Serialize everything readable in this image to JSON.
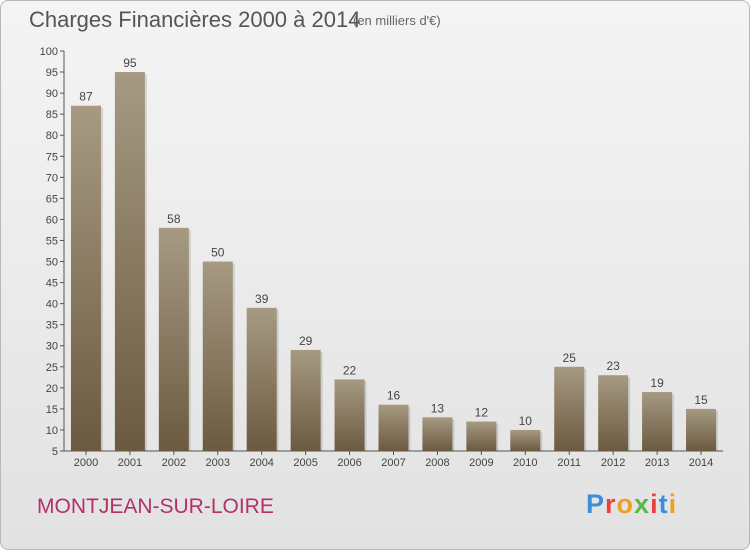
{
  "header": {
    "title": "Charges Financières 2000 à 2014",
    "subtitle": "(en milliers d'€)"
  },
  "footer": {
    "place": "MONTJEAN-SUR-LOIRE",
    "logo_letters": [
      "P",
      "r",
      "o",
      "x",
      "i",
      "t",
      "i"
    ]
  },
  "colors": {
    "bar_light": "#a69a82",
    "bar_dark": "#6b5a40",
    "place": "#b5306b",
    "logo": [
      "#3d8ed8",
      "#e8423c",
      "#f0a020",
      "#58b848",
      "#e8423c",
      "#3d8ed8",
      "#f0a020"
    ]
  },
  "chart_data": {
    "type": "bar",
    "categories": [
      "2000",
      "2001",
      "2002",
      "2003",
      "2004",
      "2005",
      "2006",
      "2007",
      "2008",
      "2009",
      "2010",
      "2011",
      "2012",
      "2013",
      "2014"
    ],
    "values": [
      87,
      95,
      58,
      50,
      39,
      29,
      22,
      16,
      13,
      12,
      10,
      25,
      23,
      19,
      15
    ],
    "title": "Charges Financières 2000 à 2014",
    "subtitle": "(en milliers d'€)",
    "ylim": [
      5,
      100
    ],
    "yticks": [
      5,
      10,
      15,
      20,
      25,
      30,
      35,
      40,
      45,
      50,
      55,
      60,
      65,
      70,
      75,
      80,
      85,
      90,
      95,
      100
    ],
    "grid": false,
    "legend": "none"
  }
}
